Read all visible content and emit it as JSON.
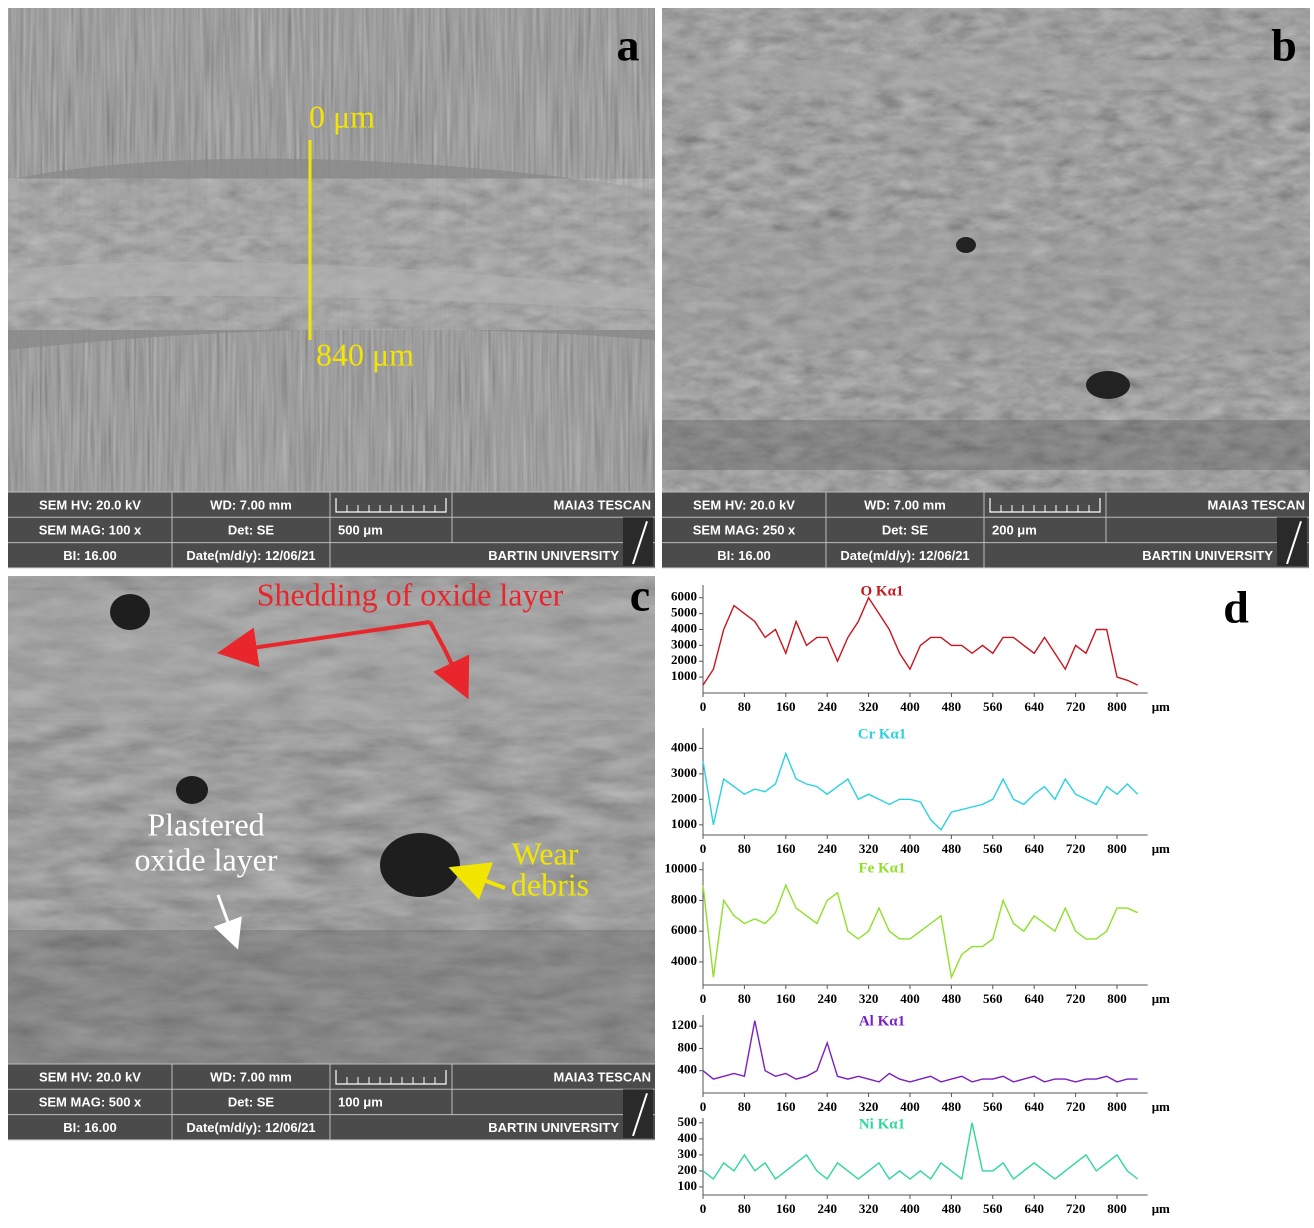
{
  "panels": [
    {
      "label": "a",
      "annotations": [
        "0 μm",
        "840  μm"
      ],
      "info": {
        "hv": "SEM HV: 20.0 kV",
        "wd": "WD: 7.00 mm",
        "maker": "MAIA3 TESCAN",
        "mag": "SEM MAG: 100 x",
        "det": "Det: SE",
        "scale": "500 μm",
        "bi": "BI: 16.00",
        "date": "Date(m/d/y): 12/06/21",
        "lab": "BARTIN UNIVERSITY"
      }
    },
    {
      "label": "b",
      "annotations": [],
      "info": {
        "hv": "SEM HV: 20.0 kV",
        "wd": "WD: 7.00 mm",
        "maker": "MAIA3 TESCAN",
        "mag": "SEM MAG: 250 x",
        "det": "Det: SE",
        "scale": "200 μm",
        "bi": "BI: 16.00",
        "date": "Date(m/d/y): 12/06/21",
        "lab": "BARTIN UNIVERSITY"
      }
    },
    {
      "label": "c",
      "annotations": [
        "Shedding of oxide layer",
        "Plastered",
        "oxide layer",
        "Wear",
        "debris"
      ],
      "info": {
        "hv": "SEM HV: 20.0 kV",
        "wd": "WD: 7.00 mm",
        "maker": "MAIA3 TESCAN",
        "mag": "SEM MAG: 500 x",
        "det": "Det: SE",
        "scale": "100 μm",
        "bi": "BI: 16.00",
        "date": "Date(m/d/y): 12/06/21",
        "lab": "BARTIN UNIVERSITY"
      }
    },
    {
      "label": "d",
      "annotations": []
    }
  ],
  "chart_data": [
    {
      "type": "line",
      "title": "O Kα1",
      "xlabel": "μm",
      "color": "#c8141e",
      "x": [
        0,
        20,
        40,
        60,
        80,
        100,
        120,
        140,
        160,
        180,
        200,
        220,
        240,
        260,
        280,
        300,
        320,
        340,
        360,
        380,
        400,
        420,
        440,
        460,
        480,
        500,
        520,
        540,
        560,
        580,
        600,
        620,
        640,
        660,
        680,
        700,
        720,
        740,
        760,
        780,
        800,
        820,
        840
      ],
      "values": [
        500,
        1500,
        4000,
        5500,
        5000,
        4500,
        3500,
        4000,
        2500,
        4500,
        3000,
        3500,
        3500,
        2000,
        3500,
        4500,
        6000,
        5000,
        4000,
        2500,
        1500,
        3000,
        3500,
        3500,
        3000,
        3000,
        2500,
        3000,
        2500,
        3500,
        3500,
        3000,
        2500,
        3500,
        2500,
        1500,
        3000,
        2500,
        4000,
        4000,
        1000,
        800,
        500
      ],
      "xlim": [
        0,
        840
      ],
      "xticks": [
        0,
        80,
        160,
        240,
        320,
        400,
        480,
        560,
        640,
        720,
        800
      ],
      "ylim": [
        0,
        6800
      ],
      "yticks": [
        1000,
        2000,
        3000,
        4000,
        5000,
        6000
      ]
    },
    {
      "type": "line",
      "title": "Cr Kα1",
      "xlabel": "μm",
      "color": "#2ad2e0",
      "x": [
        0,
        20,
        40,
        60,
        80,
        100,
        120,
        140,
        160,
        180,
        200,
        220,
        240,
        260,
        280,
        300,
        320,
        340,
        360,
        380,
        400,
        420,
        440,
        460,
        480,
        500,
        520,
        540,
        560,
        580,
        600,
        620,
        640,
        660,
        680,
        700,
        720,
        740,
        760,
        780,
        800,
        820,
        840
      ],
      "values": [
        3500,
        1000,
        2800,
        2500,
        2200,
        2400,
        2300,
        2600,
        3800,
        2800,
        2600,
        2500,
        2200,
        2500,
        2800,
        2000,
        2200,
        2000,
        1800,
        2000,
        2000,
        1900,
        1200,
        800,
        1500,
        1600,
        1700,
        1800,
        2000,
        2800,
        2000,
        1800,
        2200,
        2500,
        2000,
        2800,
        2200,
        2000,
        1800,
        2500,
        2200,
        2600,
        2200
      ],
      "xlim": [
        0,
        840
      ],
      "xticks": [
        0,
        80,
        160,
        240,
        320,
        400,
        480,
        560,
        640,
        720,
        800
      ],
      "ylim": [
        600,
        4800
      ],
      "yticks": [
        1000,
        2000,
        3000,
        4000
      ]
    },
    {
      "type": "line",
      "title": "Fe Kα1",
      "xlabel": "μm",
      "color": "#8ee02a",
      "x": [
        0,
        20,
        40,
        60,
        80,
        100,
        120,
        140,
        160,
        180,
        200,
        220,
        240,
        260,
        280,
        300,
        320,
        340,
        360,
        380,
        400,
        420,
        440,
        460,
        480,
        500,
        520,
        540,
        560,
        580,
        600,
        620,
        640,
        660,
        680,
        700,
        720,
        740,
        760,
        780,
        800,
        820,
        840
      ],
      "values": [
        9000,
        3000,
        8000,
        7000,
        6500,
        6800,
        6500,
        7200,
        9000,
        7500,
        7000,
        6500,
        8000,
        8500,
        6000,
        5500,
        6000,
        7500,
        6000,
        5500,
        5500,
        6000,
        6500,
        7000,
        3000,
        4500,
        5000,
        5000,
        5500,
        8000,
        6500,
        6000,
        7000,
        6500,
        6000,
        7500,
        6000,
        5500,
        5500,
        6000,
        7500,
        7500,
        7200
      ],
      "xlim": [
        0,
        840
      ],
      "xticks": [
        0,
        80,
        160,
        240,
        320,
        400,
        480,
        560,
        640,
        720,
        800
      ],
      "ylim": [
        2500,
        10500
      ],
      "yticks": [
        4000,
        6000,
        8000,
        10000
      ]
    },
    {
      "type": "line",
      "title": "Al Kα1",
      "xlabel": "μm",
      "color": "#7a1fc0",
      "x": [
        0,
        20,
        40,
        60,
        80,
        100,
        120,
        140,
        160,
        180,
        200,
        220,
        240,
        260,
        280,
        300,
        320,
        340,
        360,
        380,
        400,
        420,
        440,
        460,
        480,
        500,
        520,
        540,
        560,
        580,
        600,
        620,
        640,
        660,
        680,
        700,
        720,
        740,
        760,
        780,
        800,
        820,
        840
      ],
      "values": [
        400,
        250,
        300,
        350,
        300,
        1300,
        400,
        300,
        350,
        250,
        300,
        400,
        900,
        300,
        250,
        300,
        250,
        200,
        350,
        250,
        200,
        250,
        300,
        200,
        250,
        300,
        200,
        250,
        250,
        300,
        200,
        250,
        300,
        200,
        250,
        250,
        200,
        250,
        250,
        300,
        200,
        250,
        250
      ],
      "xlim": [
        0,
        840
      ],
      "xticks": [
        0,
        80,
        160,
        240,
        320,
        400,
        480,
        560,
        640,
        720,
        800
      ],
      "ylim": [
        0,
        1400
      ],
      "yticks": [
        400,
        800,
        1200
      ]
    },
    {
      "type": "line",
      "title": "Ni Kα1",
      "xlabel": "μm",
      "color": "#2ed89a",
      "x": [
        0,
        20,
        40,
        60,
        80,
        100,
        120,
        140,
        160,
        180,
        200,
        220,
        240,
        260,
        280,
        300,
        320,
        340,
        360,
        380,
        400,
        420,
        440,
        460,
        480,
        500,
        520,
        540,
        560,
        580,
        600,
        620,
        640,
        660,
        680,
        700,
        720,
        740,
        760,
        780,
        800,
        820,
        840
      ],
      "values": [
        200,
        150,
        250,
        200,
        300,
        200,
        250,
        150,
        200,
        250,
        300,
        200,
        150,
        250,
        200,
        150,
        200,
        250,
        150,
        200,
        150,
        200,
        150,
        250,
        200,
        150,
        500,
        200,
        200,
        250,
        150,
        200,
        250,
        200,
        150,
        200,
        250,
        300,
        200,
        250,
        300,
        200,
        150
      ],
      "xlim": [
        0,
        840
      ],
      "xticks": [
        0,
        80,
        160,
        240,
        320,
        400,
        480,
        560,
        640,
        720,
        800
      ],
      "ylim": [
        50,
        530
      ],
      "yticks": [
        100,
        200,
        300,
        400,
        500
      ]
    }
  ]
}
